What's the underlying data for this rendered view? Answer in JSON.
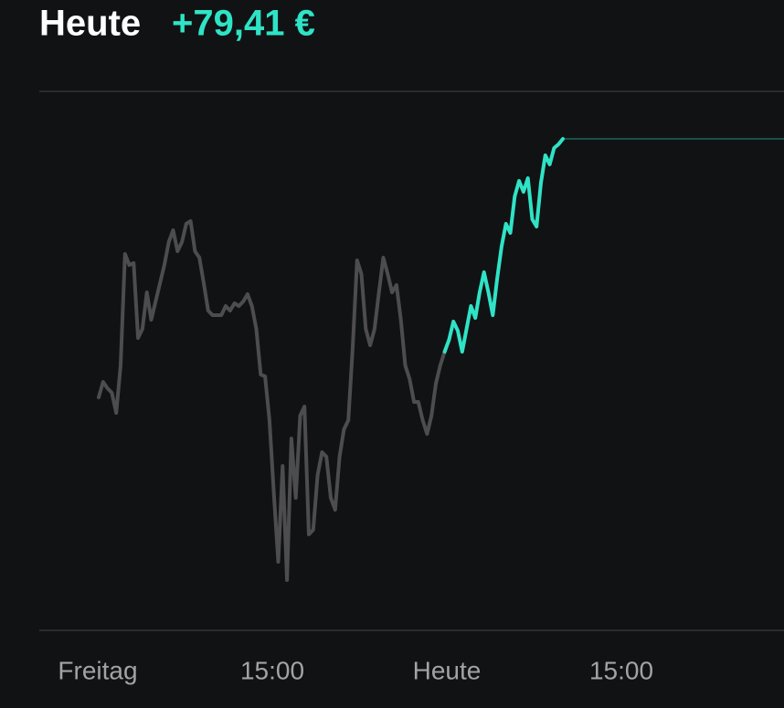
{
  "chart_data": {
    "type": "line",
    "title": "Heute",
    "change": "+79,41 €",
    "change_color": "#2fe3c6",
    "xtick_labels": [
      "Freitag",
      "15:00",
      "Heute",
      "15:00"
    ],
    "series": [
      {
        "color": "#4d4d4f",
        "values": [
          255,
          272,
          265,
          260,
          238,
          290,
          412,
          400,
          402,
          320,
          330,
          370,
          340,
          360,
          380,
          400,
          425,
          438,
          415,
          425,
          445,
          448,
          415,
          408,
          380,
          350,
          345,
          345,
          345,
          355,
          350,
          358,
          355,
          360,
          368,
          355,
          330,
          280,
          278,
          230,
          150,
          75,
          180,
          55,
          210,
          145,
          235,
          245,
          105,
          110,
          170,
          195,
          190,
          145,
          132,
          190,
          220,
          230,
          310,
          405,
          390,
          330,
          312,
          330,
          370,
          408,
          390,
          370,
          378,
          340,
          290,
          275,
          250,
          250,
          230,
          215,
          235,
          270,
          290,
          305,
          null,
          null,
          null,
          null,
          null,
          null,
          null,
          null,
          null,
          null,
          null,
          null,
          null,
          null,
          null,
          null,
          null,
          null,
          null,
          null,
          null,
          null,
          null,
          null,
          null,
          null,
          null
        ]
      },
      {
        "color": "#2fe3c6",
        "values": [
          null,
          null,
          null,
          null,
          null,
          null,
          null,
          null,
          null,
          null,
          null,
          null,
          null,
          null,
          null,
          null,
          null,
          null,
          null,
          null,
          null,
          null,
          null,
          null,
          null,
          null,
          null,
          null,
          null,
          null,
          null,
          null,
          null,
          null,
          null,
          null,
          null,
          null,
          null,
          null,
          null,
          null,
          null,
          null,
          null,
          null,
          null,
          null,
          null,
          null,
          null,
          null,
          null,
          null,
          null,
          null,
          null,
          null,
          null,
          null,
          null,
          null,
          null,
          null,
          null,
          null,
          null,
          null,
          null,
          null,
          null,
          null,
          null,
          null,
          null,
          null,
          null,
          null,
          null,
          305,
          318,
          338,
          328,
          305,
          330,
          355,
          342,
          370,
          392,
          370,
          345,
          385,
          420,
          445,
          435,
          475,
          492,
          480,
          495,
          450,
          442,
          490,
          520,
          510,
          528,
          532,
          538
        ]
      }
    ]
  }
}
